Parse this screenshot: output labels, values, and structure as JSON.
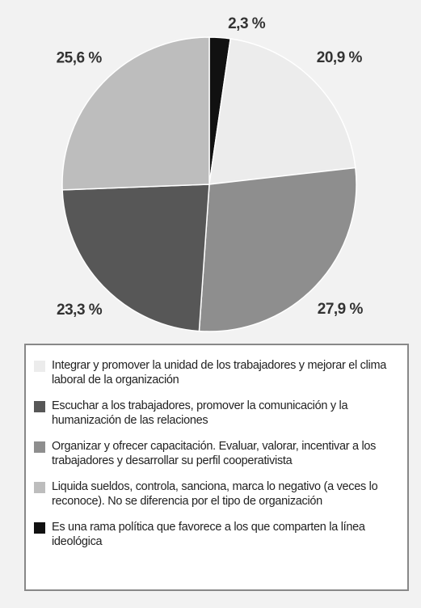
{
  "chart_data": {
    "type": "pie",
    "categories": [
      "Integrar y promover la unidad de los trabajadores y mejorar el clima laboral de la organización",
      "Escuchar a los trabajadores, promover la comunicación y la humanización de las relaciones",
      "Organizar y ofrecer capacitación. Evaluar, valorar, incentivar a los trabajadores y desarrollar su perfil cooperativista",
      "Liquida sueldos, controla, sanciona, marca lo negativo (a veces lo reconoce). No se diferencia por el tipo de organización",
      "Es una rama política que favorece a los que comparten la línea ideológica"
    ],
    "values": [
      20.9,
      23.3,
      27.9,
      25.6,
      2.3
    ],
    "value_labels": [
      "20,9 %",
      "23,3 %",
      "27,9 %",
      "25,6 %",
      "2,3 %"
    ],
    "colors": [
      "#ececec",
      "#575757",
      "#8e8e8e",
      "#bdbdbd",
      "#111111"
    ]
  }
}
